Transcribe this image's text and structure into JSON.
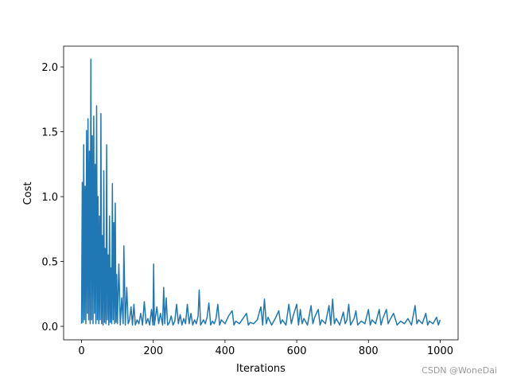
{
  "chart_data": {
    "type": "line",
    "x_label": "Iterations",
    "y_label": "Cost",
    "watermark": "CSDN @WoneDai",
    "xlim": [
      -50,
      1050
    ],
    "ylim": [
      -0.104,
      2.16
    ],
    "xticks": [
      0,
      200,
      400,
      600,
      800,
      1000
    ],
    "yticks": [
      {
        "value": 0,
        "label": "0.0"
      },
      0.5,
      {
        "value": 1,
        "label": "1.0"
      },
      1.5,
      {
        "value": 2,
        "label": "2.0"
      }
    ],
    "color": "#1f77b4",
    "x": [
      0,
      2,
      4,
      6,
      8,
      10,
      12,
      14,
      16,
      18,
      20,
      22,
      24,
      26,
      28,
      30,
      32,
      34,
      36,
      38,
      40,
      42,
      44,
      46,
      48,
      50,
      52,
      54,
      56,
      58,
      60,
      62,
      64,
      66,
      68,
      70,
      72,
      74,
      76,
      78,
      80,
      82,
      84,
      86,
      88,
      90,
      92,
      94,
      96,
      98,
      100,
      104,
      108,
      112,
      116,
      118,
      122,
      126,
      130,
      134,
      138,
      142,
      146,
      150,
      155,
      160,
      165,
      170,
      175,
      180,
      185,
      190,
      195,
      199,
      201,
      203,
      210,
      215,
      220,
      226,
      229,
      232,
      236,
      240,
      245,
      250,
      255,
      260,
      265,
      270,
      275,
      280,
      285,
      290,
      295,
      300,
      305,
      310,
      315,
      320,
      325,
      328,
      332,
      340,
      345,
      350,
      355,
      360,
      365,
      370,
      375,
      380,
      385,
      390,
      400,
      410,
      420,
      425,
      430,
      440,
      450,
      460,
      465,
      470,
      480,
      490,
      500,
      505,
      510,
      515,
      520,
      530,
      540,
      550,
      555,
      560,
      570,
      578,
      585,
      590,
      600,
      605,
      610,
      615,
      620,
      630,
      640,
      645,
      650,
      660,
      665,
      670,
      680,
      690,
      695,
      700,
      705,
      710,
      720,
      730,
      735,
      740,
      745,
      750,
      760,
      765,
      770,
      780,
      790,
      800,
      805,
      810,
      820,
      830,
      835,
      840,
      850,
      855,
      860,
      870,
      880,
      890,
      900,
      910,
      920,
      930,
      935,
      940,
      950,
      960,
      965,
      970,
      980,
      990,
      995,
      1000
    ],
    "values": [
      0.02,
      1.11,
      0.03,
      1.4,
      0.05,
      1.08,
      0.02,
      1.51,
      0.1,
      1.6,
      0.05,
      1.35,
      0.02,
      2.06,
      0.05,
      1.47,
      0.02,
      1.62,
      0.1,
      1.25,
      0.02,
      1.7,
      0.05,
      1.0,
      0.02,
      0.85,
      0.05,
      1.64,
      0.02,
      0.7,
      0.01,
      1.2,
      0.03,
      0.6,
      0.02,
      1.4,
      0.05,
      0.55,
      0.01,
      0.85,
      0.03,
      0.45,
      0.02,
      1.1,
      0.05,
      0.8,
      0.02,
      0.95,
      0.03,
      0.4,
      0.02,
      0.48,
      0.01,
      0.22,
      0.02,
      0.62,
      0.01,
      0.3,
      0.02,
      0.05,
      0.15,
      0.01,
      0.17,
      0.01,
      0.05,
      0.02,
      0.1,
      0.01,
      0.19,
      0.02,
      0.06,
      0.01,
      0.13,
      0.01,
      0.48,
      0.01,
      0.15,
      0.02,
      0.1,
      0.01,
      0.3,
      0.02,
      0.22,
      0.01,
      0.03,
      0.08,
      0.01,
      0.04,
      0.17,
      0.02,
      0.09,
      0.01,
      0.06,
      0.02,
      0.17,
      0.02,
      0.1,
      0.01,
      0.05,
      0.02,
      0.08,
      0.28,
      0.01,
      0.05,
      0.02,
      0.07,
      0.18,
      0.01,
      0.04,
      0.02,
      0.06,
      0.17,
      0.01,
      0.05,
      0.02,
      0.08,
      0.12,
      0.01,
      0.04,
      0.02,
      0.06,
      0.1,
      0.01,
      0.03,
      0.02,
      0.05,
      0.15,
      0.01,
      0.21,
      0.02,
      0.07,
      0.01,
      0.06,
      0.12,
      0.02,
      0.05,
      0.01,
      0.17,
      0.02,
      0.08,
      0.17,
      0.01,
      0.13,
      0.02,
      0.06,
      0.01,
      0.16,
      0.02,
      0.07,
      0.13,
      0.01,
      0.05,
      0.02,
      0.16,
      0.01,
      0.21,
      0.02,
      0.06,
      0.01,
      0.11,
      0.02,
      0.05,
      0.17,
      0.01,
      0.06,
      0.12,
      0.01,
      0.04,
      0.02,
      0.13,
      0.01,
      0.05,
      0.02,
      0.13,
      0.01,
      0.06,
      0.13,
      0.02,
      0.05,
      0.1,
      0.01,
      0.04,
      0.02,
      0.06,
      0.01,
      0.16,
      0.02,
      0.05,
      0.02,
      0.1,
      0.01,
      0.04,
      0.02,
      0.07,
      0.01,
      0.05
    ]
  }
}
